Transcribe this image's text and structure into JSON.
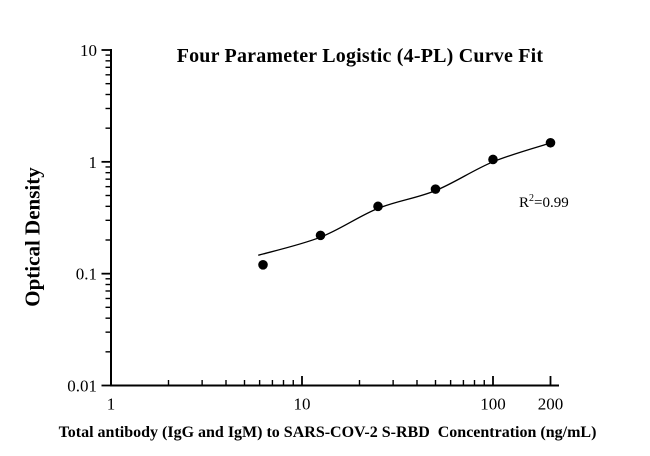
{
  "figure": {
    "background": "#ffffff",
    "ink": "#000000"
  },
  "chart_data": {
    "type": "scatter",
    "title": "Four Parameter Logistic (4-PL) Curve Fit",
    "xlabel": "Total antibody (IgG and IgM) to SARS-COV-2 S-RBD  Concentration (ng/mL)",
    "ylabel": "Optical Density",
    "x_scale": "log",
    "y_scale": "log",
    "xlim": [
      1,
      215
    ],
    "ylim": [
      0.01,
      10
    ],
    "grid": false,
    "legend": false,
    "x_ticks": {
      "major": [
        1,
        10,
        100,
        200
      ],
      "major_labels": [
        "1",
        "10",
        "100",
        "200"
      ],
      "minor": [
        2,
        3,
        4,
        5,
        6,
        7,
        8,
        9,
        20,
        30,
        40,
        50,
        60,
        70,
        80,
        90
      ]
    },
    "y_ticks": {
      "major": [
        0.01,
        0.1,
        1,
        10
      ],
      "major_labels": [
        "0.01",
        "0.1",
        "1",
        "10"
      ],
      "minor": [
        0.02,
        0.03,
        0.04,
        0.05,
        0.06,
        0.07,
        0.08,
        0.09,
        0.2,
        0.3,
        0.4,
        0.5,
        0.6,
        0.7,
        0.8,
        0.9,
        2,
        3,
        4,
        5,
        6,
        7,
        8,
        9
      ]
    },
    "series": [
      {
        "name": "standard data points",
        "marker": "filled-circle",
        "color": "#000000",
        "x": [
          6.25,
          12.5,
          25,
          50,
          100,
          200
        ],
        "y": [
          0.12,
          0.22,
          0.4,
          0.57,
          1.05,
          1.48
        ]
      }
    ],
    "fit_curve": {
      "name": "4-PL fit line",
      "color": "#000000",
      "x": [
        5.9,
        12.5,
        25,
        50,
        100,
        210
      ],
      "y": [
        0.146,
        0.212,
        0.383,
        0.553,
        1.0,
        1.51
      ]
    },
    "annotation": {
      "r_label": "R",
      "exponent": "2",
      "value_text": "=0.99"
    }
  }
}
